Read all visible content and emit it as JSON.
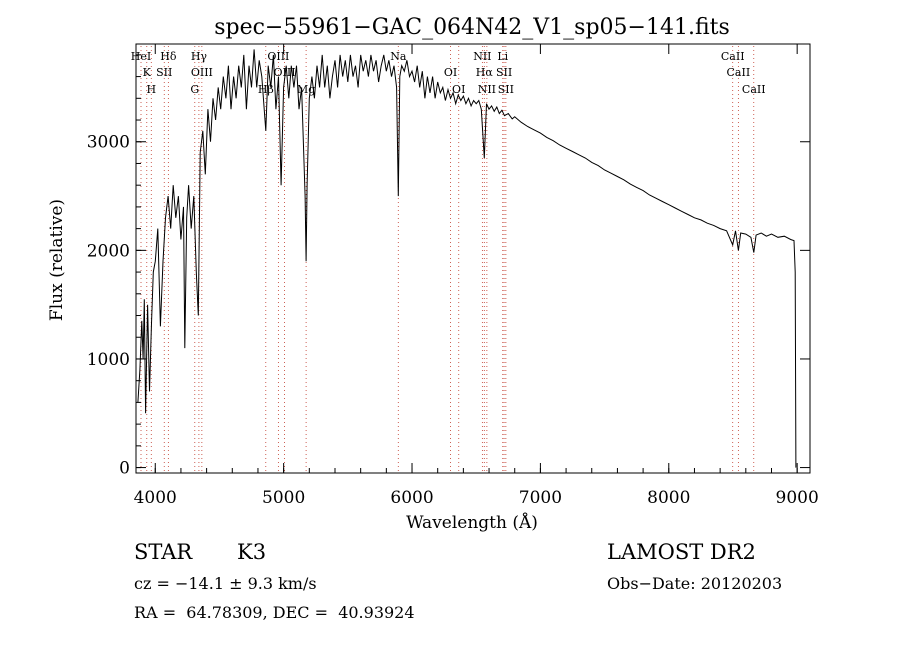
{
  "chart_data": {
    "type": "line",
    "title": "spec−55961−GAC_064N42_V1_sp05−141.fits",
    "xlabel": "Wavelength (Å)",
    "ylabel": "Flux (relative)",
    "xlim": [
      3850,
      9100
    ],
    "ylim": [
      -50,
      3900
    ],
    "x_ticks": [
      4000,
      5000,
      6000,
      7000,
      8000,
      9000
    ],
    "y_ticks": [
      0,
      1000,
      2000,
      3000
    ],
    "x_tick_labels": [
      "4000",
      "5000",
      "6000",
      "7000",
      "8000",
      "9000"
    ],
    "y_tick_labels": [
      "0",
      "1000",
      "2000",
      "3000"
    ],
    "grid": false,
    "series": [
      {
        "points": [
          [
            3865,
            600
          ],
          [
            3880,
            900
          ],
          [
            3895,
            1350
          ],
          [
            3905,
            1000
          ],
          [
            3915,
            1550
          ],
          [
            3925,
            500
          ],
          [
            3940,
            1500
          ],
          [
            3955,
            700
          ],
          [
            3970,
            1300
          ],
          [
            3985,
            1800
          ],
          [
            4000,
            1900
          ],
          [
            4020,
            2200
          ],
          [
            4040,
            1300
          ],
          [
            4060,
            1900
          ],
          [
            4080,
            2300
          ],
          [
            4100,
            2500
          ],
          [
            4120,
            2200
          ],
          [
            4140,
            2600
          ],
          [
            4160,
            2300
          ],
          [
            4180,
            2500
          ],
          [
            4200,
            2100
          ],
          [
            4220,
            2400
          ],
          [
            4230,
            1100
          ],
          [
            4245,
            2300
          ],
          [
            4260,
            2600
          ],
          [
            4280,
            2200
          ],
          [
            4300,
            2500
          ],
          [
            4320,
            1800
          ],
          [
            4335,
            1400
          ],
          [
            4350,
            2900
          ],
          [
            4370,
            3100
          ],
          [
            4390,
            2700
          ],
          [
            4410,
            3300
          ],
          [
            4430,
            3000
          ],
          [
            4450,
            3400
          ],
          [
            4470,
            3200
          ],
          [
            4490,
            3500
          ],
          [
            4510,
            3300
          ],
          [
            4530,
            3600
          ],
          [
            4550,
            3400
          ],
          [
            4570,
            3700
          ],
          [
            4590,
            3300
          ],
          [
            4610,
            3600
          ],
          [
            4630,
            3400
          ],
          [
            4650,
            3700
          ],
          [
            4670,
            3500
          ],
          [
            4690,
            3800
          ],
          [
            4710,
            3300
          ],
          [
            4730,
            3700
          ],
          [
            4750,
            3500
          ],
          [
            4770,
            3850
          ],
          [
            4790,
            3500
          ],
          [
            4810,
            3750
          ],
          [
            4830,
            3600
          ],
          [
            4861,
            3100
          ],
          [
            4880,
            3700
          ],
          [
            4900,
            3500
          ],
          [
            4920,
            3800
          ],
          [
            4940,
            3300
          ],
          [
            4960,
            3600
          ],
          [
            4980,
            2600
          ],
          [
            5000,
            3500
          ],
          [
            5020,
            3700
          ],
          [
            5040,
            3400
          ],
          [
            5060,
            3700
          ],
          [
            5080,
            3500
          ],
          [
            5100,
            3700
          ],
          [
            5120,
            3300
          ],
          [
            5140,
            3500
          ],
          [
            5167,
            2500
          ],
          [
            5175,
            1900
          ],
          [
            5183,
            2600
          ],
          [
            5200,
            3400
          ],
          [
            5220,
            3600
          ],
          [
            5240,
            3400
          ],
          [
            5260,
            3700
          ],
          [
            5280,
            3500
          ],
          [
            5300,
            3800
          ],
          [
            5320,
            3500
          ],
          [
            5340,
            3700
          ],
          [
            5360,
            3400
          ],
          [
            5380,
            3600
          ],
          [
            5400,
            3750
          ],
          [
            5420,
            3500
          ],
          [
            5440,
            3800
          ],
          [
            5460,
            3600
          ],
          [
            5480,
            3750
          ],
          [
            5500,
            3550
          ],
          [
            5520,
            3800
          ],
          [
            5540,
            3600
          ],
          [
            5560,
            3700
          ],
          [
            5580,
            3500
          ],
          [
            5600,
            3800
          ],
          [
            5620,
            3650
          ],
          [
            5640,
            3750
          ],
          [
            5660,
            3600
          ],
          [
            5680,
            3800
          ],
          [
            5700,
            3650
          ],
          [
            5720,
            3750
          ],
          [
            5740,
            3550
          ],
          [
            5760,
            3700
          ],
          [
            5780,
            3800
          ],
          [
            5800,
            3650
          ],
          [
            5820,
            3750
          ],
          [
            5840,
            3600
          ],
          [
            5860,
            3700
          ],
          [
            5880,
            3500
          ],
          [
            5893,
            2500
          ],
          [
            5905,
            3600
          ],
          [
            5920,
            3700
          ],
          [
            5940,
            3650
          ],
          [
            5960,
            3750
          ],
          [
            5980,
            3600
          ],
          [
            6000,
            3650
          ],
          [
            6020,
            3550
          ],
          [
            6040,
            3700
          ],
          [
            6060,
            3500
          ],
          [
            6080,
            3650
          ],
          [
            6100,
            3400
          ],
          [
            6120,
            3600
          ],
          [
            6140,
            3450
          ],
          [
            6160,
            3600
          ],
          [
            6180,
            3400
          ],
          [
            6200,
            3550
          ],
          [
            6220,
            3450
          ],
          [
            6240,
            3500
          ],
          [
            6260,
            3380
          ],
          [
            6280,
            3480
          ],
          [
            6300,
            3400
          ],
          [
            6320,
            3450
          ],
          [
            6340,
            3350
          ],
          [
            6360,
            3430
          ],
          [
            6380,
            3380
          ],
          [
            6400,
            3420
          ],
          [
            6420,
            3350
          ],
          [
            6440,
            3400
          ],
          [
            6460,
            3330
          ],
          [
            6480,
            3380
          ],
          [
            6500,
            3350
          ],
          [
            6520,
            3380
          ],
          [
            6540,
            3300
          ],
          [
            6563,
            2850
          ],
          [
            6580,
            3350
          ],
          [
            6600,
            3300
          ],
          [
            6620,
            3330
          ],
          [
            6640,
            3280
          ],
          [
            6660,
            3320
          ],
          [
            6680,
            3260
          ],
          [
            6700,
            3290
          ],
          [
            6720,
            3240
          ],
          [
            6750,
            3260
          ],
          [
            6780,
            3210
          ],
          [
            6800,
            3230
          ],
          [
            6850,
            3180
          ],
          [
            6900,
            3140
          ],
          [
            6950,
            3110
          ],
          [
            7000,
            3080
          ],
          [
            7050,
            3040
          ],
          [
            7100,
            3010
          ],
          [
            7150,
            2970
          ],
          [
            7200,
            2940
          ],
          [
            7250,
            2910
          ],
          [
            7300,
            2880
          ],
          [
            7350,
            2850
          ],
          [
            7400,
            2810
          ],
          [
            7450,
            2780
          ],
          [
            7500,
            2740
          ],
          [
            7550,
            2710
          ],
          [
            7600,
            2680
          ],
          [
            7650,
            2650
          ],
          [
            7700,
            2610
          ],
          [
            7750,
            2580
          ],
          [
            7800,
            2550
          ],
          [
            7850,
            2510
          ],
          [
            7900,
            2480
          ],
          [
            7950,
            2450
          ],
          [
            8000,
            2420
          ],
          [
            8050,
            2390
          ],
          [
            8100,
            2360
          ],
          [
            8150,
            2330
          ],
          [
            8200,
            2300
          ],
          [
            8250,
            2280
          ],
          [
            8300,
            2250
          ],
          [
            8350,
            2230
          ],
          [
            8400,
            2200
          ],
          [
            8450,
            2180
          ],
          [
            8498,
            2050
          ],
          [
            8520,
            2180
          ],
          [
            8542,
            2000
          ],
          [
            8560,
            2160
          ],
          [
            8600,
            2150
          ],
          [
            8640,
            2120
          ],
          [
            8662,
            1980
          ],
          [
            8680,
            2140
          ],
          [
            8720,
            2160
          ],
          [
            8760,
            2130
          ],
          [
            8800,
            2150
          ],
          [
            8850,
            2120
          ],
          [
            8900,
            2130
          ],
          [
            8950,
            2100
          ],
          [
            8975,
            2090
          ],
          [
            8985,
            1800
          ],
          [
            8990,
            0
          ]
        ]
      }
    ],
    "line_markers": {
      "note_color": "#c0392b",
      "lines": [
        {
          "x": 3889,
          "labels": [
            "HeI"
          ]
        },
        {
          "x": 3934,
          "labels": [
            "K"
          ]
        },
        {
          "x": 3969,
          "labels": [
            "H"
          ]
        },
        {
          "x": 4102,
          "labels": [
            "Hδ"
          ]
        },
        {
          "x": 4070,
          "labels": [
            "SII"
          ]
        },
        {
          "x": 4308,
          "labels": [
            "G"
          ]
        },
        {
          "x": 4340,
          "labels": [
            "Hγ"
          ]
        },
        {
          "x": 4363,
          "labels": [
            "OIII"
          ]
        },
        {
          "x": 4861,
          "labels": [
            "Hβ"
          ]
        },
        {
          "x": 4959,
          "labels": [
            "OIII"
          ]
        },
        {
          "x": 5007,
          "labels": [
            "OIII"
          ]
        },
        {
          "x": 5175,
          "labels": [
            "Mg"
          ]
        },
        {
          "x": 5893,
          "labels": [
            "Na"
          ]
        },
        {
          "x": 6300,
          "labels": [
            "OI"
          ]
        },
        {
          "x": 6364,
          "labels": [
            "OI"
          ]
        },
        {
          "x": 6548,
          "labels": [
            "NII"
          ]
        },
        {
          "x": 6563,
          "labels": [
            "Hα"
          ]
        },
        {
          "x": 6583,
          "labels": [
            "NII"
          ]
        },
        {
          "x": 6707,
          "labels": [
            "Li"
          ]
        },
        {
          "x": 6717,
          "labels": [
            "SII"
          ]
        },
        {
          "x": 6731,
          "labels": [
            "SII"
          ]
        },
        {
          "x": 8498,
          "labels": [
            "CaII"
          ]
        },
        {
          "x": 8542,
          "labels": [
            "CaII"
          ]
        },
        {
          "x": 8662,
          "labels": [
            "CaII"
          ]
        }
      ]
    }
  },
  "info": {
    "object_class": "STAR",
    "subclass": "K3",
    "survey": "LAMOST DR2",
    "velocity": "cz = −14.1 ± 9.3 km/s",
    "obs_date": "Obs−Date: 20120203",
    "coords": "RA =  64.78309, DEC =  40.93924"
  }
}
